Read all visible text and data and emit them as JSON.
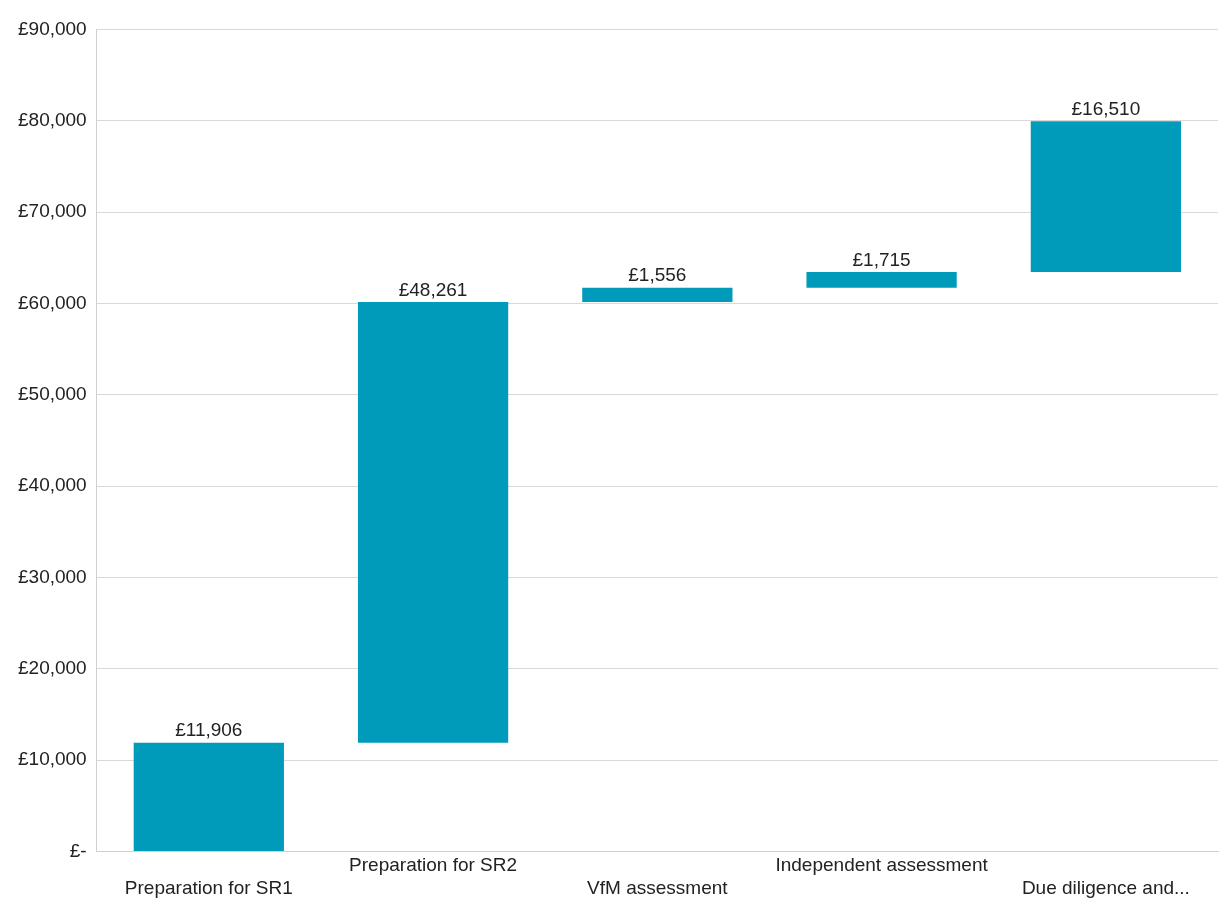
{
  "chart_data": {
    "type": "bar",
    "categories": [
      "Preparation for SR1",
      "Preparation for SR2",
      "VfM assessment",
      "Independent assessment",
      "Due diligence and..."
    ],
    "values": [
      11906,
      48261,
      1556,
      1715,
      16510
    ],
    "base": [
      0,
      11906,
      60167,
      61723,
      63438
    ],
    "color": "#009bbb",
    "value_labels": [
      "£11,906",
      "£48,261",
      "£1,556",
      "£1,715",
      "£16,510"
    ],
    "ylim": [
      0,
      90000
    ],
    "yticks": [
      {
        "value": 0,
        "label": "£-"
      },
      {
        "value": 10000,
        "label": "£10,000"
      },
      {
        "value": 20000,
        "label": "£20,000"
      },
      {
        "value": 30000,
        "label": "£30,000"
      },
      {
        "value": 40000,
        "label": "£40,000"
      },
      {
        "value": 50000,
        "label": "£50,000"
      },
      {
        "value": 60000,
        "label": "£60,000"
      },
      {
        "value": 70000,
        "label": "£70,000"
      },
      {
        "value": 80000,
        "label": "£80,000"
      },
      {
        "value": 90000,
        "label": "£90,000"
      }
    ],
    "grid": "y",
    "legend": false
  }
}
